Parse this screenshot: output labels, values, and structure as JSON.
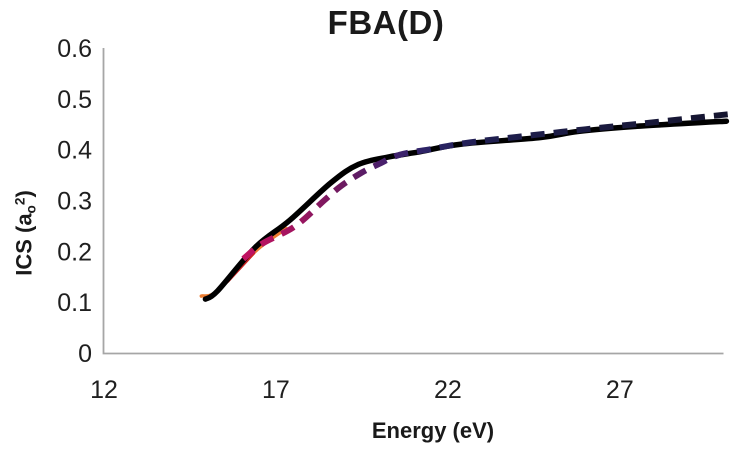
{
  "chart_data": {
    "type": "line",
    "title": "FBA(D)",
    "xlabel": "Energy (eV)",
    "ylabel": "ICS (aₒ²)",
    "ylabel_parts": {
      "prefix": "ICS (a",
      "sub": "o",
      "sup": "2",
      "suffix": ")"
    },
    "xlim": [
      12,
      30
    ],
    "ylim": [
      0,
      0.6
    ],
    "grid": false,
    "legend": "none",
    "axis_color": "#A6A6A6",
    "text_color": "#1F1F1F",
    "xticks": [
      {
        "v": 12,
        "label": "12"
      },
      {
        "v": 17,
        "label": "17"
      },
      {
        "v": 22,
        "label": "22"
      },
      {
        "v": 27,
        "label": "27"
      }
    ],
    "yticks": [
      {
        "v": 0,
        "label": "0"
      },
      {
        "v": 0.1,
        "label": "0.1"
      },
      {
        "v": 0.2,
        "label": "0.2"
      },
      {
        "v": 0.3,
        "label": "0.3"
      },
      {
        "v": 0.4,
        "label": "0.4"
      },
      {
        "v": 0.5,
        "label": "0.5"
      },
      {
        "v": 0.6,
        "label": "0.6"
      }
    ],
    "series": [
      {
        "name": "orange-underlay-solid",
        "style": "solid",
        "color": "#ED7D31",
        "width": 3.5,
        "points": [
          [
            14.83,
            0.112
          ],
          [
            15.3,
            0.122
          ],
          [
            16.4,
            0.2
          ],
          [
            17.3,
            0.245
          ]
        ]
      },
      {
        "name": "red-underlay-solid",
        "style": "solid",
        "color": "#CC2424",
        "width": 3,
        "points": [
          [
            15.6,
            0.141
          ],
          [
            16.35,
            0.196
          ]
        ]
      },
      {
        "name": "black-solid-main",
        "style": "solid",
        "color": "#000000",
        "width": 5.5,
        "points": [
          [
            14.95,
            0.106
          ],
          [
            15.3,
            0.122
          ],
          [
            16.4,
            0.208
          ],
          [
            17.4,
            0.261
          ],
          [
            18.6,
            0.335
          ],
          [
            19.4,
            0.371
          ],
          [
            20.3,
            0.386
          ],
          [
            21.2,
            0.396
          ],
          [
            22.4,
            0.411
          ],
          [
            24.7,
            0.424
          ],
          [
            25.8,
            0.436
          ],
          [
            27.5,
            0.446
          ],
          [
            30.1,
            0.456
          ]
        ]
      },
      {
        "name": "crimson-purple-navy-dashed",
        "style": "dashed",
        "width": 6,
        "dash": [
          14,
          9
        ],
        "gradient_stops": [
          {
            "offset": 0,
            "color": "#C11261"
          },
          {
            "offset": 0.1,
            "color": "#A31460"
          },
          {
            "offset": 0.2,
            "color": "#6E1A60"
          },
          {
            "offset": 0.3,
            "color": "#44216E"
          },
          {
            "offset": 0.38,
            "color": "#2B2366"
          },
          {
            "offset": 0.52,
            "color": "#1F1F4E"
          },
          {
            "offset": 1,
            "color": "#15152E"
          }
        ],
        "points": [
          [
            16.05,
            0.185
          ],
          [
            16.6,
            0.215
          ],
          [
            17.55,
            0.249
          ],
          [
            18.4,
            0.3
          ],
          [
            18.9,
            0.329
          ],
          [
            19.5,
            0.355
          ],
          [
            20.0,
            0.372
          ],
          [
            20.6,
            0.39
          ],
          [
            21.5,
            0.401
          ],
          [
            22.5,
            0.413
          ],
          [
            24.0,
            0.425
          ],
          [
            26.0,
            0.44
          ],
          [
            28.0,
            0.454
          ],
          [
            30.2,
            0.47
          ]
        ]
      }
    ]
  }
}
